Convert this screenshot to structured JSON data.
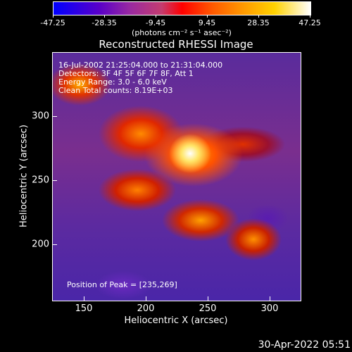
{
  "colorbar": {
    "labels": [
      "-47.25",
      "-28.35",
      "-9.45",
      "9.45",
      "28.35",
      "47.25"
    ],
    "unit": "(photons cm⁻² s⁻¹ asec⁻²)",
    "colors": [
      "#0000ff",
      "#ff0000",
      "#ffffff"
    ]
  },
  "title": "Reconstructed RHESSI Image",
  "overlay": {
    "time": "16-Jul-2002 21:25:04.000 to 21:31:04.000",
    "detectors": "Detectors: 3F 4F 5F 6F 7F 8F, Att 1",
    "energy": "Energy Range: 3.0 - 6.0 keV",
    "clean": "Clean    Total counts: 8.19E+03",
    "peak": "Position of Peak = [235,269]"
  },
  "axes": {
    "xlabel": "Heliocentric X (arcsec)",
    "ylabel": "Heliocentric Y (arcsec)",
    "xticks": [
      "150",
      "200",
      "250",
      "300"
    ],
    "yticks": [
      "300",
      "250",
      "200"
    ]
  },
  "timestamp": "30-Apr-2022 05:51"
}
